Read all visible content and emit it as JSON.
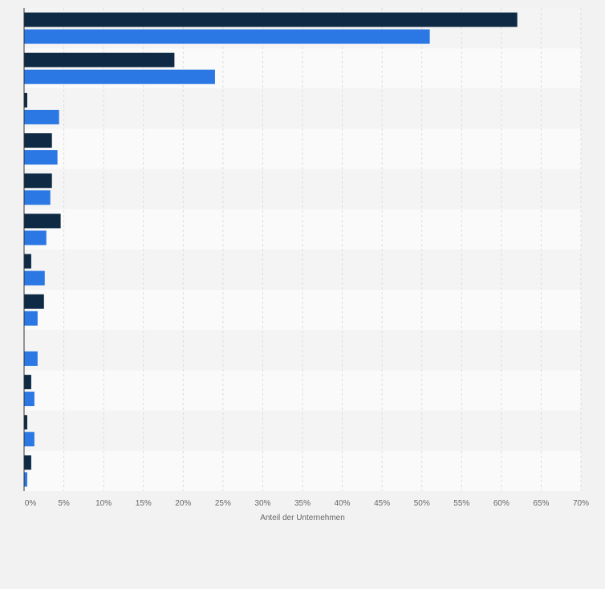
{
  "chart_data": {
    "type": "bar",
    "orientation": "horizontal",
    "categories": [
      "",
      "",
      "",
      "",
      "",
      "",
      "",
      "",
      "",
      "",
      "",
      ""
    ],
    "series": [
      {
        "color": "#0f2a44",
        "values": [
          62,
          18.9,
          0.4,
          3.5,
          3.5,
          4.6,
          0.9,
          2.5,
          0,
          0.9,
          0.4,
          0.9
        ]
      },
      {
        "color": "#2b78e4",
        "values": [
          51,
          24,
          4.4,
          4.2,
          3.3,
          2.8,
          2.6,
          1.7,
          1.7,
          1.3,
          1.3,
          0.4
        ]
      }
    ],
    "xlim": [
      0,
      70
    ],
    "xticks": [
      "0%",
      "5%",
      "10%",
      "15%",
      "20%",
      "25%",
      "30%",
      "35%",
      "40%",
      "45%",
      "50%",
      "55%",
      "60%",
      "65%",
      "70%"
    ],
    "xlabel": "Anteil der Unternehmen",
    "grid": true,
    "band_colors": [
      "#f4f4f4",
      "#fafafa"
    ]
  }
}
